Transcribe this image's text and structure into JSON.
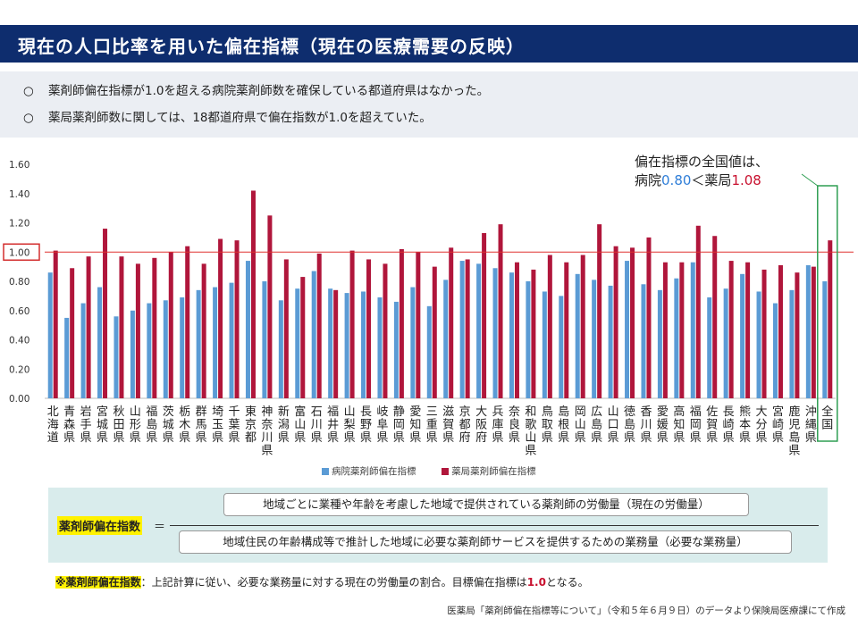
{
  "header": {
    "title": "現在の人口比率を用いた偏在指標（現在の医療需要の反映）"
  },
  "bullets": [
    {
      "mark": "○",
      "text": "薬剤師偏在指標が1.0を超える病院薬剤師数を確保している都道府県はなかった。"
    },
    {
      "mark": "○",
      "text": "薬局薬剤師数に関しては、18都道府県で偏在指数が1.0を超えていた。"
    }
  ],
  "callout": {
    "line1": "偏在指標の全国値は、",
    "prefix": "病院",
    "hospital_value": "0.80",
    "sep": "＜薬局",
    "pharmacy_value": "1.08"
  },
  "formula": {
    "label": "薬剤師偏在指数",
    "equals": "＝",
    "numerator": "地域ごとに業種や年齢を考慮した地域で提供されている薬剤師の労働量（現在の労働量）",
    "denominator": "地域住民の年齢構成等で推計した地域に必要な薬剤師サービスを提供するための業務量（必要な業務量）"
  },
  "note": {
    "highlight": "※薬剤師偏在指数",
    "text": "：上記計算に従い、必要な業務量に対する現在の労働量の割合。目標偏在指標は",
    "value": "1.0",
    "suffix": "となる。"
  },
  "source": "医薬局「薬剤師偏在指標等について」（令和５年６月９日）のデータより保険局医療課にて作成",
  "colors": {
    "hospital": "#5b9bd5",
    "pharmacy": "#b0163b",
    "refline": "#e0312f",
    "highlight_box": "#2e9e52",
    "header": "#0e2d6e"
  },
  "chart_data": {
    "type": "bar",
    "ylim": [
      0,
      1.6
    ],
    "yticks": [
      "0.00",
      "0.20",
      "0.40",
      "0.60",
      "0.80",
      "1.00",
      "1.20",
      "1.40",
      "1.60"
    ],
    "reference_line": 1.0,
    "grid": false,
    "legend_position": "bottom",
    "categories": [
      "北海道",
      "青森県",
      "岩手県",
      "宮城県",
      "秋田県",
      "山形県",
      "福島県",
      "茨城県",
      "栃木県",
      "群馬県",
      "埼玉県",
      "千葉県",
      "東京都",
      "神奈川県",
      "新潟県",
      "富山県",
      "石川県",
      "福井県",
      "山梨県",
      "長野県",
      "岐阜県",
      "静岡県",
      "愛知県",
      "三重県",
      "滋賀県",
      "京都府",
      "大阪府",
      "兵庫県",
      "奈良県",
      "和歌山県",
      "鳥取県",
      "島根県",
      "岡山県",
      "広島県",
      "山口県",
      "徳島県",
      "香川県",
      "愛媛県",
      "高知県",
      "福岡県",
      "佐賀県",
      "長崎県",
      "熊本県",
      "大分県",
      "宮崎県",
      "鹿児島県",
      "沖縄県",
      "全国"
    ],
    "series": [
      {
        "name": "病院薬剤師偏在指標",
        "values": [
          0.86,
          0.55,
          0.65,
          0.76,
          0.56,
          0.6,
          0.65,
          0.67,
          0.69,
          0.74,
          0.76,
          0.79,
          0.94,
          0.8,
          0.67,
          0.75,
          0.87,
          0.75,
          0.72,
          0.73,
          0.69,
          0.66,
          0.76,
          0.63,
          0.81,
          0.94,
          0.92,
          0.89,
          0.86,
          0.8,
          0.73,
          0.7,
          0.85,
          0.81,
          0.77,
          0.94,
          0.78,
          0.74,
          0.82,
          0.93,
          0.69,
          0.75,
          0.85,
          0.73,
          0.65,
          0.74,
          0.91,
          0.8
        ]
      },
      {
        "name": "薬局薬剤師偏在指標",
        "values": [
          1.01,
          0.89,
          0.97,
          1.16,
          0.97,
          0.92,
          0.96,
          1.0,
          1.04,
          0.92,
          1.09,
          1.08,
          1.42,
          1.25,
          0.95,
          0.83,
          0.99,
          0.74,
          1.01,
          0.95,
          0.92,
          1.02,
          1.0,
          0.9,
          1.03,
          0.95,
          1.13,
          1.19,
          0.93,
          0.88,
          0.98,
          0.93,
          0.98,
          1.19,
          1.04,
          1.03,
          1.1,
          0.93,
          0.93,
          1.18,
          1.11,
          0.94,
          0.93,
          0.88,
          0.91,
          0.86,
          0.9,
          1.08
        ]
      }
    ]
  }
}
